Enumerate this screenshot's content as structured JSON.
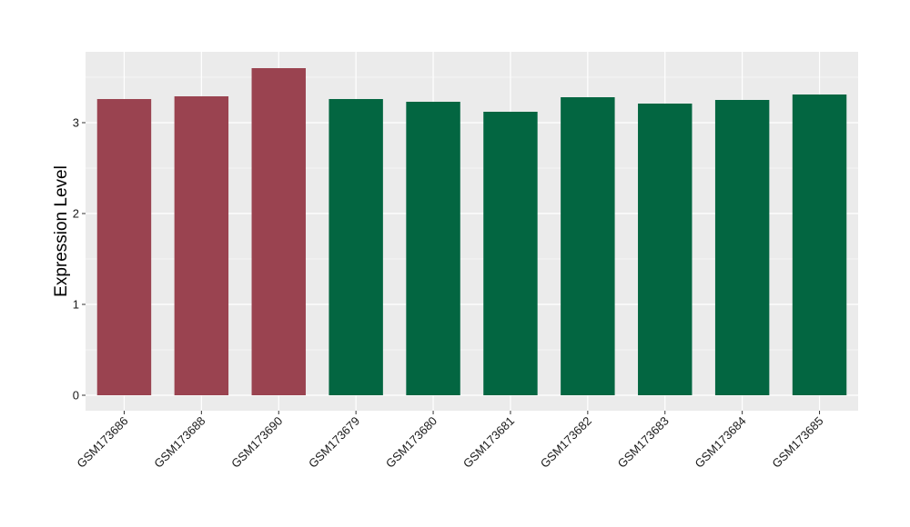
{
  "chart_data": {
    "type": "bar",
    "title": "",
    "xlabel": "",
    "ylabel": "Expression Level",
    "categories": [
      "GSM173686",
      "GSM173688",
      "GSM173690",
      "GSM173679",
      "GSM173680",
      "GSM173681",
      "GSM173682",
      "GSM173683",
      "GSM173684",
      "GSM173685"
    ],
    "values": [
      3.26,
      3.29,
      3.6,
      3.26,
      3.23,
      3.12,
      3.28,
      3.21,
      3.25,
      3.31
    ],
    "bar_colors": [
      "#9a4350",
      "#9a4350",
      "#9a4350",
      "#036641",
      "#036641",
      "#036641",
      "#036641",
      "#036641",
      "#036641",
      "#036641"
    ],
    "yticks": [
      0,
      1,
      2,
      3
    ],
    "ylim": [
      -0.17,
      3.78
    ],
    "grid": true,
    "legend": "none",
    "panel_background": "#ebebeb",
    "gridline_color": "#ffffff"
  }
}
